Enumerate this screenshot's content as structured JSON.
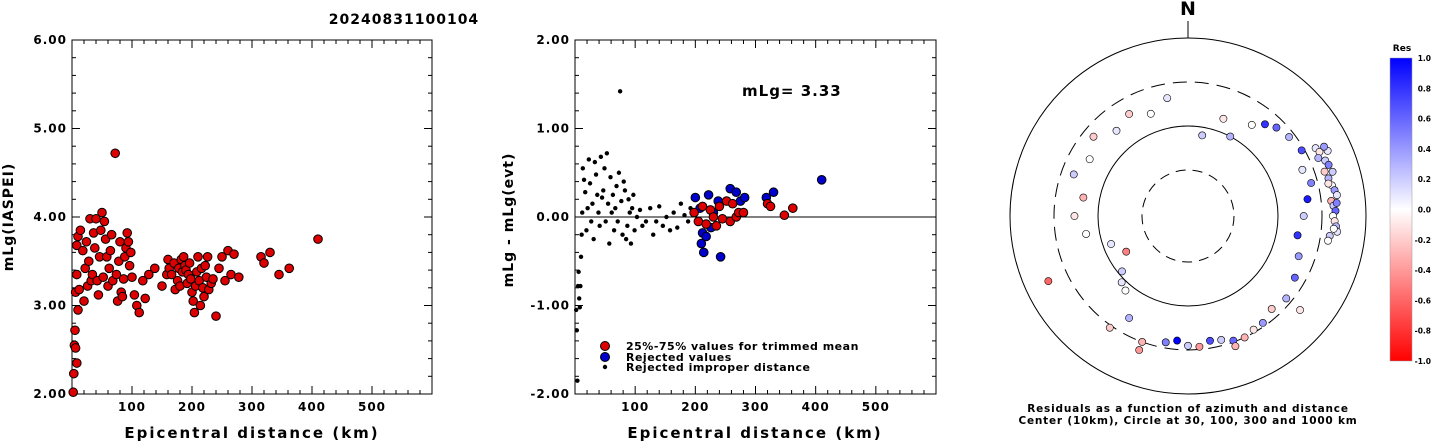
{
  "title": "20240831100104",
  "colors": {
    "red": "#dd0000",
    "blue": "#0000cc",
    "black": "#000000"
  },
  "chart_data": [
    {
      "type": "scatter",
      "xlabel": "Epicentral distance (km)",
      "ylabel": "mLg(IASPEI)",
      "xlim": [
        0,
        600
      ],
      "ylim": [
        2,
        6
      ],
      "xticks": [
        "100",
        "200",
        "300",
        "400",
        "500"
      ],
      "yticks": [
        "2.00",
        "3.00",
        "4.00",
        "5.00",
        "6.00"
      ],
      "points": [
        [
          2,
          2.02
        ],
        [
          3,
          2.23
        ],
        [
          4,
          2.55
        ],
        [
          5,
          2.72
        ],
        [
          6,
          2.52
        ],
        [
          8,
          2.35
        ],
        [
          6,
          3.15
        ],
        [
          8,
          3.35
        ],
        [
          10,
          2.95
        ],
        [
          12,
          3.18
        ],
        [
          8,
          3.68
        ],
        [
          10,
          3.78
        ],
        [
          14,
          3.85
        ],
        [
          18,
          3.62
        ],
        [
          20,
          3.05
        ],
        [
          22,
          3.42
        ],
        [
          24,
          3.72
        ],
        [
          26,
          3.22
        ],
        [
          28,
          3.5
        ],
        [
          30,
          3.98
        ],
        [
          32,
          3.28
        ],
        [
          34,
          3.35
        ],
        [
          36,
          3.82
        ],
        [
          38,
          3.65
        ],
        [
          40,
          3.98
        ],
        [
          42,
          3.28
        ],
        [
          44,
          3.12
        ],
        [
          46,
          3.55
        ],
        [
          48,
          3.85
        ],
        [
          50,
          4.05
        ],
        [
          52,
          3.32
        ],
        [
          54,
          3.95
        ],
        [
          56,
          3.75
        ],
        [
          58,
          3.55
        ],
        [
          60,
          3.22
        ],
        [
          62,
          3.42
        ],
        [
          64,
          3.62
        ],
        [
          66,
          3.8
        ],
        [
          68,
          3.28
        ],
        [
          72,
          4.72
        ],
        [
          74,
          3.35
        ],
        [
          76,
          3.05
        ],
        [
          78,
          3.5
        ],
        [
          80,
          3.72
        ],
        [
          82,
          3.15
        ],
        [
          84,
          3.1
        ],
        [
          86,
          3.3
        ],
        [
          88,
          3.55
        ],
        [
          90,
          3.65
        ],
        [
          92,
          3.82
        ],
        [
          94,
          3.72
        ],
        [
          96,
          3.45
        ],
        [
          98,
          3.6
        ],
        [
          100,
          3.32
        ],
        [
          104,
          3.12
        ],
        [
          108,
          3.0
        ],
        [
          112,
          2.92
        ],
        [
          118,
          3.28
        ],
        [
          122,
          3.08
        ],
        [
          128,
          3.35
        ],
        [
          138,
          3.42
        ],
        [
          150,
          3.22
        ],
        [
          158,
          3.35
        ],
        [
          160,
          3.52
        ],
        [
          162,
          3.42
        ],
        [
          166,
          3.35
        ],
        [
          170,
          3.48
        ],
        [
          172,
          3.18
        ],
        [
          176,
          3.28
        ],
        [
          178,
          3.42
        ],
        [
          180,
          3.22
        ],
        [
          182,
          3.52
        ],
        [
          184,
          3.38
        ],
        [
          186,
          3.55
        ],
        [
          188,
          3.45
        ],
        [
          190,
          3.4
        ],
        [
          192,
          3.25
        ],
        [
          194,
          3.35
        ],
        [
          196,
          3.48
        ],
        [
          198,
          3.3
        ],
        [
          200,
          3.15
        ],
        [
          202,
          3.05
        ],
        [
          204,
          2.92
        ],
        [
          206,
          3.22
        ],
        [
          208,
          3.38
        ],
        [
          210,
          3.55
        ],
        [
          212,
          3.28
        ],
        [
          214,
          3.0
        ],
        [
          216,
          3.42
        ],
        [
          218,
          3.2
        ],
        [
          220,
          3.1
        ],
        [
          222,
          3.45
        ],
        [
          224,
          3.32
        ],
        [
          226,
          3.55
        ],
        [
          228,
          3.18
        ],
        [
          232,
          3.25
        ],
        [
          235,
          3.3
        ],
        [
          240,
          2.88
        ],
        [
          245,
          3.42
        ],
        [
          250,
          3.55
        ],
        [
          255,
          3.28
        ],
        [
          260,
          3.62
        ],
        [
          265,
          3.35
        ],
        [
          270,
          3.58
        ],
        [
          278,
          3.32
        ],
        [
          315,
          3.55
        ],
        [
          320,
          3.48
        ],
        [
          330,
          3.6
        ],
        [
          345,
          3.35
        ],
        [
          362,
          3.42
        ],
        [
          410,
          3.75
        ]
      ]
    },
    {
      "type": "scatter",
      "xlabel": "Epicentral distance (km)",
      "ylabel": "mLg - mLg(evt)",
      "xlim": [
        0,
        600
      ],
      "ylim": [
        -2,
        2
      ],
      "xticks": [
        "100",
        "200",
        "300",
        "400",
        "500"
      ],
      "yticks": [
        "-2.00",
        "-1.00",
        "0.00",
        "1.00",
        "2.00"
      ],
      "annotation": "mLg= 3.33",
      "reference_line_y": 0,
      "legend": [
        {
          "label": "25%-75% values for trimmed mean",
          "color": "red"
        },
        {
          "label": "Rejected values",
          "color": "blue"
        },
        {
          "label": "Rejected improper distance",
          "color": "black"
        }
      ],
      "series_red": [
        [
          198,
          0.05
        ],
        [
          205,
          -0.05
        ],
        [
          212,
          0.12
        ],
        [
          218,
          -0.08
        ],
        [
          225,
          0.08
        ],
        [
          230,
          0.0
        ],
        [
          235,
          -0.1
        ],
        [
          240,
          0.12
        ],
        [
          245,
          -0.02
        ],
        [
          252,
          0.18
        ],
        [
          258,
          -0.05
        ],
        [
          262,
          0.15
        ],
        [
          268,
          0.0
        ],
        [
          272,
          0.05
        ],
        [
          280,
          0.05
        ],
        [
          320,
          0.15
        ],
        [
          325,
          0.12
        ],
        [
          348,
          0.02
        ],
        [
          362,
          0.1
        ]
      ],
      "series_blue": [
        [
          200,
          0.22
        ],
        [
          208,
          0.1
        ],
        [
          210,
          -0.3
        ],
        [
          212,
          -0.18
        ],
        [
          214,
          -0.4
        ],
        [
          218,
          -0.22
        ],
        [
          222,
          0.25
        ],
        [
          226,
          -0.12
        ],
        [
          230,
          0.05
        ],
        [
          238,
          0.18
        ],
        [
          242,
          -0.45
        ],
        [
          258,
          0.32
        ],
        [
          268,
          0.28
        ],
        [
          275,
          0.18
        ],
        [
          282,
          0.22
        ],
        [
          318,
          0.22
        ],
        [
          330,
          0.28
        ],
        [
          410,
          0.42
        ]
      ],
      "series_black": [
        [
          2,
          -1.05
        ],
        [
          3,
          -1.28
        ],
        [
          4,
          -1.85
        ],
        [
          5,
          -0.78
        ],
        [
          6,
          -0.62
        ],
        [
          7,
          -0.92
        ],
        [
          8,
          -1.02
        ],
        [
          9,
          -0.78
        ],
        [
          10,
          -0.45
        ],
        [
          11,
          -0.2
        ],
        [
          12,
          0.05
        ],
        [
          13,
          0.55
        ],
        [
          15,
          0.42
        ],
        [
          17,
          0.28
        ],
        [
          19,
          -0.15
        ],
        [
          21,
          0.1
        ],
        [
          23,
          0.65
        ],
        [
          25,
          0.38
        ],
        [
          27,
          -0.05
        ],
        [
          29,
          0.15
        ],
        [
          31,
          -0.25
        ],
        [
          33,
          0.62
        ],
        [
          35,
          0.48
        ],
        [
          37,
          0.25
        ],
        [
          39,
          0.05
        ],
        [
          41,
          -0.1
        ],
        [
          43,
          0.68
        ],
        [
          45,
          0.22
        ],
        [
          47,
          0.3
        ],
        [
          49,
          0.55
        ],
        [
          51,
          -0.05
        ],
        [
          53,
          0.72
        ],
        [
          55,
          0.15
        ],
        [
          57,
          -0.3
        ],
        [
          59,
          0.45
        ],
        [
          61,
          0.05
        ],
        [
          63,
          0.25
        ],
        [
          65,
          -0.15
        ],
        [
          67,
          0.1
        ],
        [
          69,
          0.35
        ],
        [
          71,
          -0.05
        ],
        [
          73,
          0.5
        ],
        [
          75,
          1.42
        ],
        [
          77,
          0.18
        ],
        [
          79,
          -0.2
        ],
        [
          81,
          0.4
        ],
        [
          83,
          0.3
        ],
        [
          85,
          -0.25
        ],
        [
          87,
          -0.1
        ],
        [
          89,
          0.2
        ],
        [
          91,
          0.05
        ],
        [
          93,
          -0.3
        ],
        [
          95,
          0.1
        ],
        [
          97,
          0.25
        ],
        [
          99,
          -0.15
        ],
        [
          103,
          0.0
        ],
        [
          108,
          0.08
        ],
        [
          112,
          -0.1
        ],
        [
          118,
          -0.05
        ],
        [
          125,
          0.1
        ],
        [
          130,
          -0.2
        ],
        [
          135,
          -0.05
        ],
        [
          140,
          0.12
        ],
        [
          146,
          -0.1
        ],
        [
          152,
          0.0
        ],
        [
          158,
          -0.15
        ],
        [
          164,
          0.05
        ],
        [
          170,
          -0.12
        ],
        [
          176,
          0.15
        ],
        [
          182,
          0.02
        ],
        [
          188,
          -0.05
        ],
        [
          192,
          0.1
        ]
      ]
    },
    {
      "type": "scatter",
      "subtype": "polar residual map",
      "north_label": "N",
      "caption_line1": "Residuals as a function of azimuth and distance",
      "caption_line2": "Center (10km), Circle at 30, 100, 300 and 1000 km",
      "ring_distances_km": [
        30,
        100,
        300,
        1000
      ],
      "colorbar": {
        "title": "Res",
        "ticks": [
          "1.0",
          "0.8",
          "0.6",
          "0.4",
          "0.2",
          "0.0",
          "-0.2",
          "-0.4",
          "-0.6",
          "-0.8",
          "-1.0"
        ],
        "range": [
          -1,
          1
        ]
      },
      "stations": [
        [
          62,
          400,
          0.1
        ],
        [
          64,
          420,
          -0.1
        ],
        [
          66,
          380,
          0.3
        ],
        [
          68,
          440,
          0.2
        ],
        [
          70,
          460,
          0.5
        ],
        [
          72,
          390,
          -0.2
        ],
        [
          75,
          410,
          0.3
        ],
        [
          78,
          430,
          0.0
        ],
        [
          80,
          450,
          0.4
        ],
        [
          82,
          470,
          0.1
        ],
        [
          84,
          395,
          -0.3
        ],
        [
          86,
          415,
          0.2
        ],
        [
          88,
          435,
          0.6
        ],
        [
          90,
          405,
          0.0
        ],
        [
          92,
          425,
          -0.1
        ],
        [
          94,
          445,
          0.3
        ],
        [
          96,
          465,
          0.1
        ],
        [
          98,
          385,
          0.2
        ],
        [
          100,
          375,
          0.0
        ],
        [
          65,
          520,
          0.1
        ],
        [
          63,
          500,
          0.4
        ],
        [
          73,
          480,
          0.2
        ],
        [
          77,
          395,
          -0.1
        ],
        [
          85,
          455,
          0.5
        ],
        [
          95,
          420,
          0.0
        ],
        [
          40,
          210,
          0.8
        ],
        [
          45,
          240,
          0.6
        ],
        [
          52,
          260,
          0.3
        ],
        [
          60,
          280,
          0.7
        ],
        [
          68,
          230,
          0.1
        ],
        [
          75,
          255,
          0.5
        ],
        [
          82,
          215,
          0.9
        ],
        [
          90,
          190,
          0.2
        ],
        [
          100,
          170,
          0.8
        ],
        [
          110,
          200,
          0.4
        ],
        [
          120,
          230,
          0.6
        ],
        [
          130,
          260,
          0.3
        ],
        [
          138,
          240,
          -0.2
        ],
        [
          145,
          275,
          0.4
        ],
        [
          150,
          280,
          -0.1
        ],
        [
          155,
          300,
          -0.3
        ],
        [
          160,
          290,
          0.6
        ],
        [
          165,
          260,
          0.2
        ],
        [
          170,
          250,
          0.7
        ],
        [
          175,
          280,
          -0.4
        ],
        [
          180,
          270,
          0.2
        ],
        [
          185,
          240,
          1.0
        ],
        [
          190,
          260,
          0.5
        ],
        [
          200,
          300,
          -0.3
        ],
        [
          210,
          200,
          0.3
        ],
        [
          220,
          120,
          0.0
        ],
        [
          230,
          90,
          0.2
        ],
        [
          240,
          60,
          -0.5
        ],
        [
          250,
          80,
          0.1
        ],
        [
          260,
          140,
          0.0
        ],
        [
          270,
          180,
          -0.1
        ],
        [
          280,
          150,
          -0.3
        ],
        [
          290,
          220,
          0.2
        ],
        [
          300,
          180,
          0.0
        ],
        [
          310,
          230,
          -0.2
        ],
        [
          320,
          170,
          0.1
        ],
        [
          330,
          200,
          -0.2
        ],
        [
          340,
          160,
          0.0
        ],
        [
          350,
          210,
          0.1
        ],
        [
          20,
          140,
          -0.1
        ],
        [
          28,
          100,
          0.3
        ],
        [
          35,
          170,
          0.0
        ],
        [
          10,
          80,
          0.2
        ],
        [
          225,
          110,
          0.1
        ],
        [
          245,
          520,
          -0.6
        ],
        [
          215,
          320,
          -0.2
        ],
        [
          200,
          380,
          -0.4
        ],
        [
          160,
          340,
          -0.3
        ],
        [
          130,
          420,
          -0.1
        ]
      ]
    }
  ]
}
